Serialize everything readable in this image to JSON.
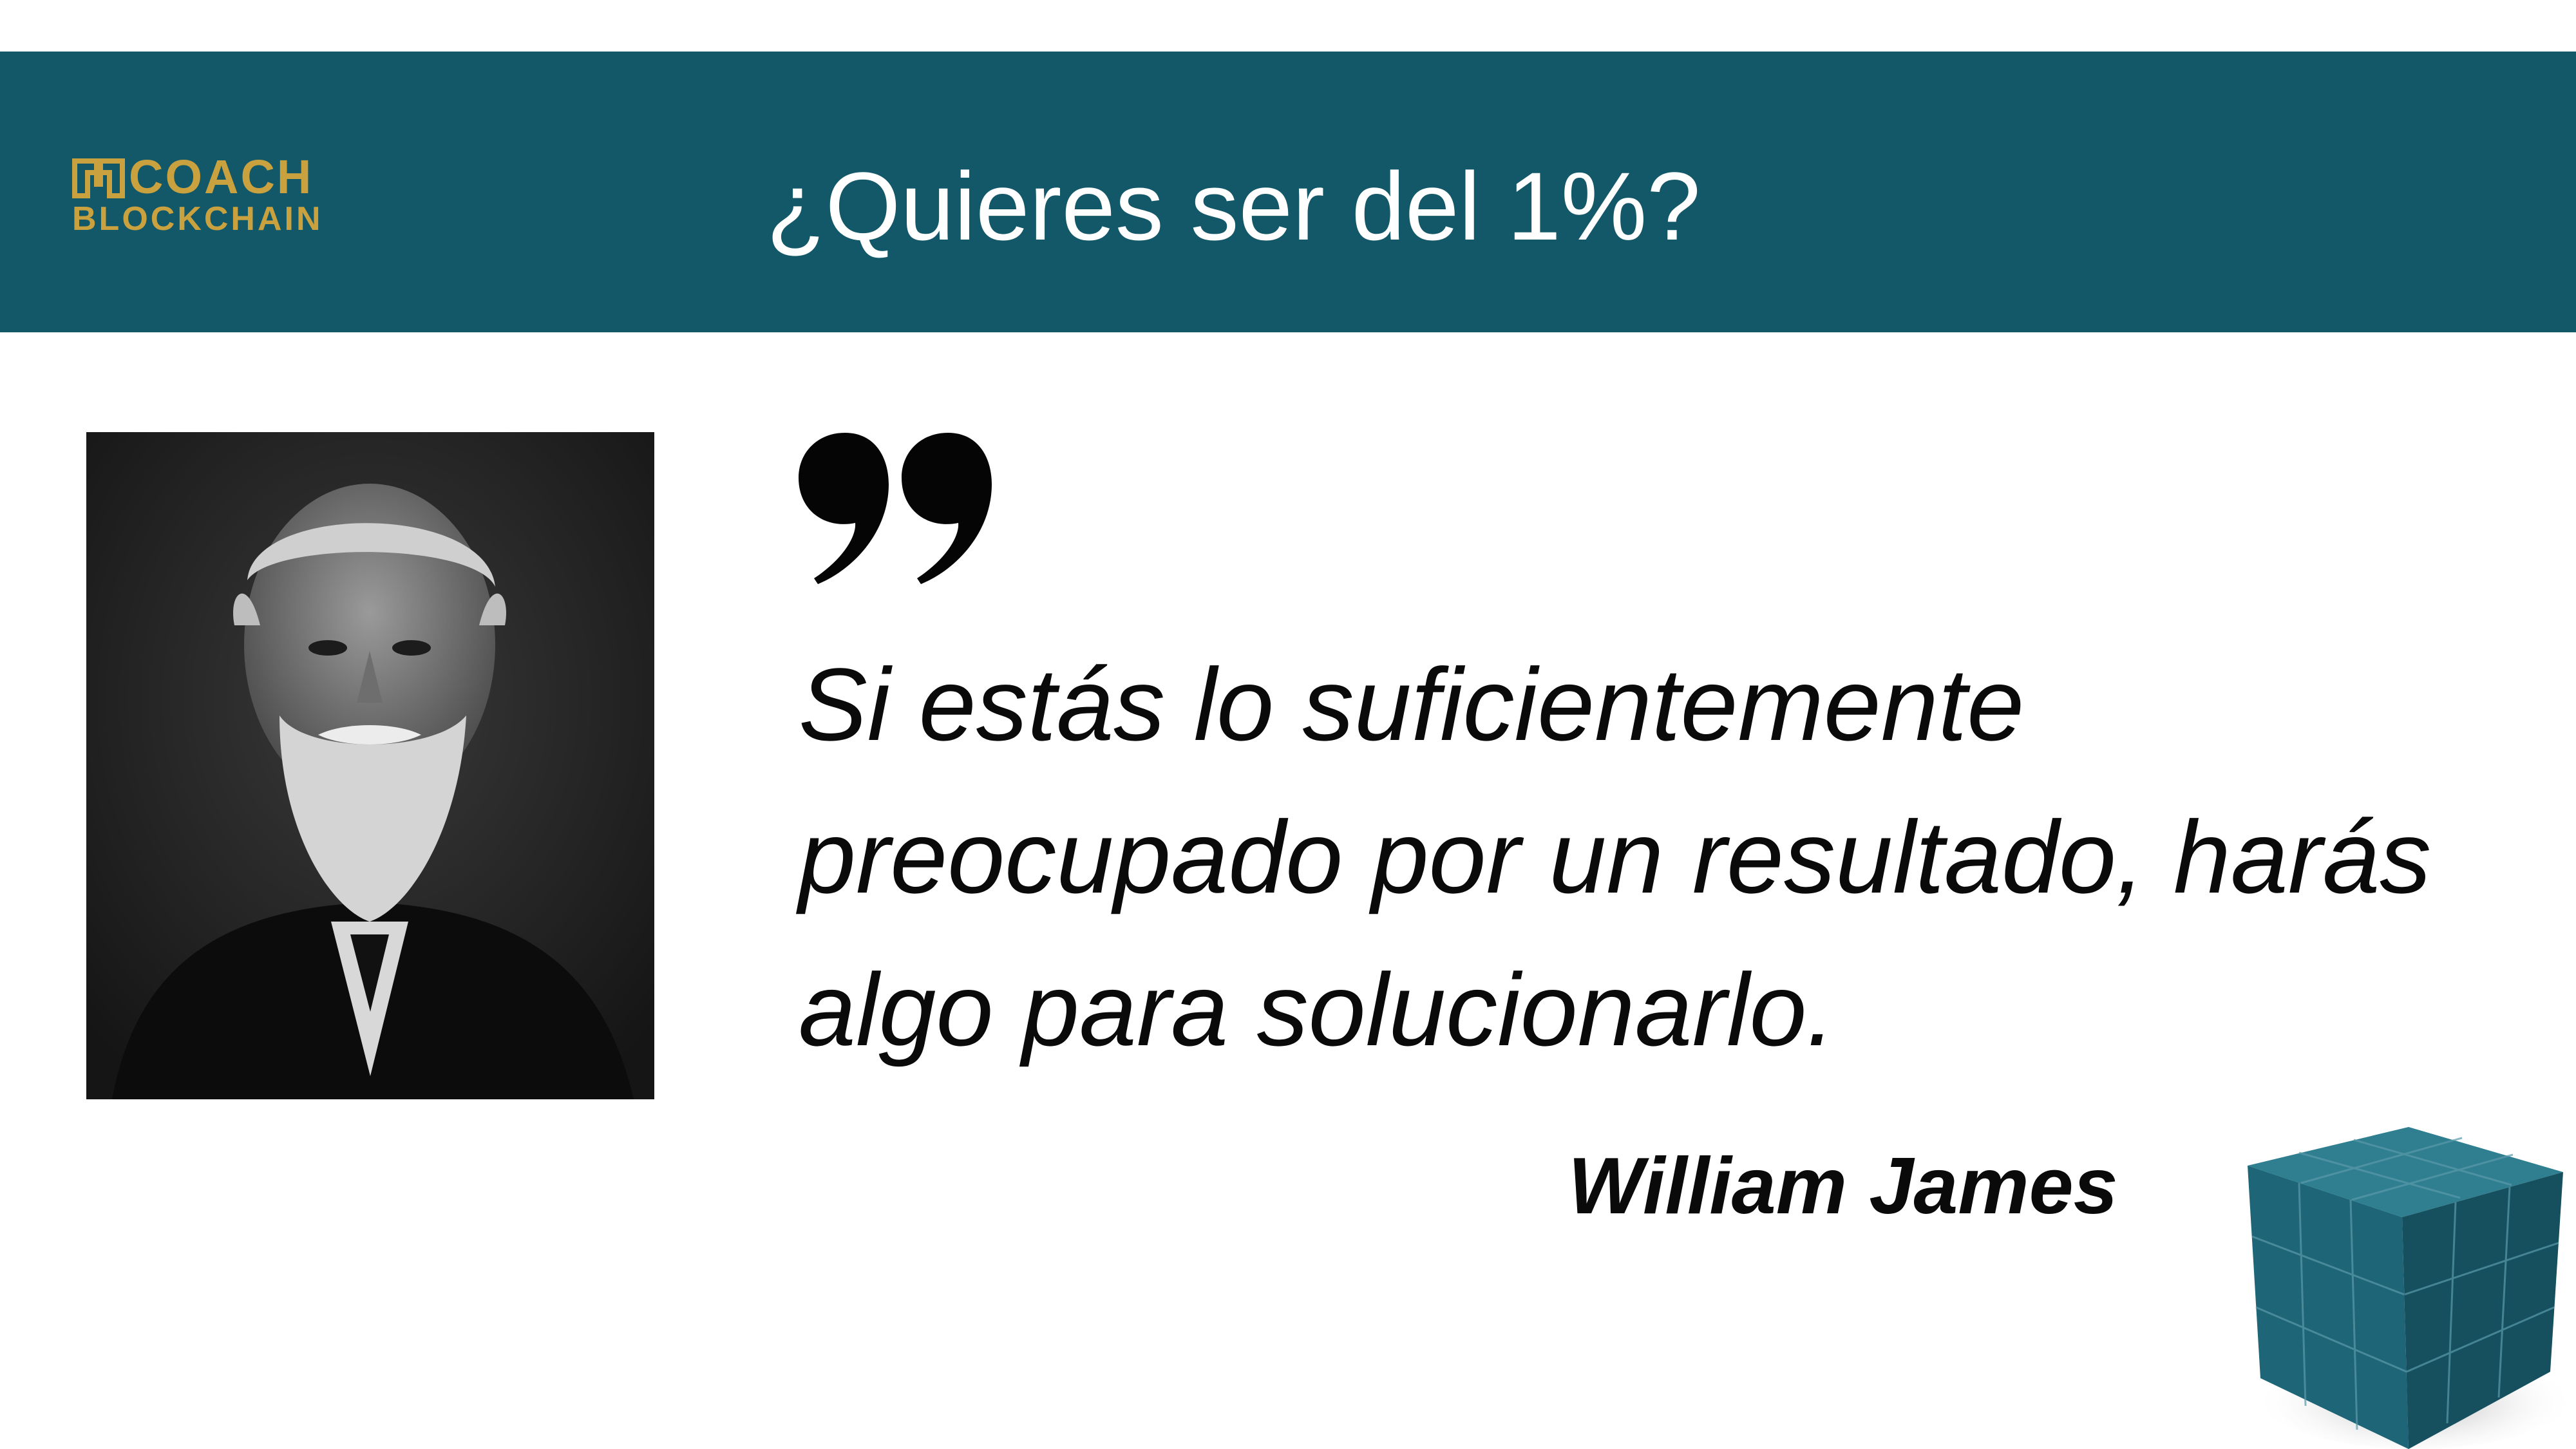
{
  "header": {
    "logo": {
      "line1": "COACH",
      "line2": "BLOCKCHAIN",
      "color": "#c9a23f"
    },
    "title": "¿Quieres ser del 1%?",
    "background": "#135868"
  },
  "quote": {
    "lines": [
      "Si estás lo suficientemente",
      "preocupado por un resultado, harás",
      "algo para solucionarlo."
    ],
    "author": "William James"
  }
}
